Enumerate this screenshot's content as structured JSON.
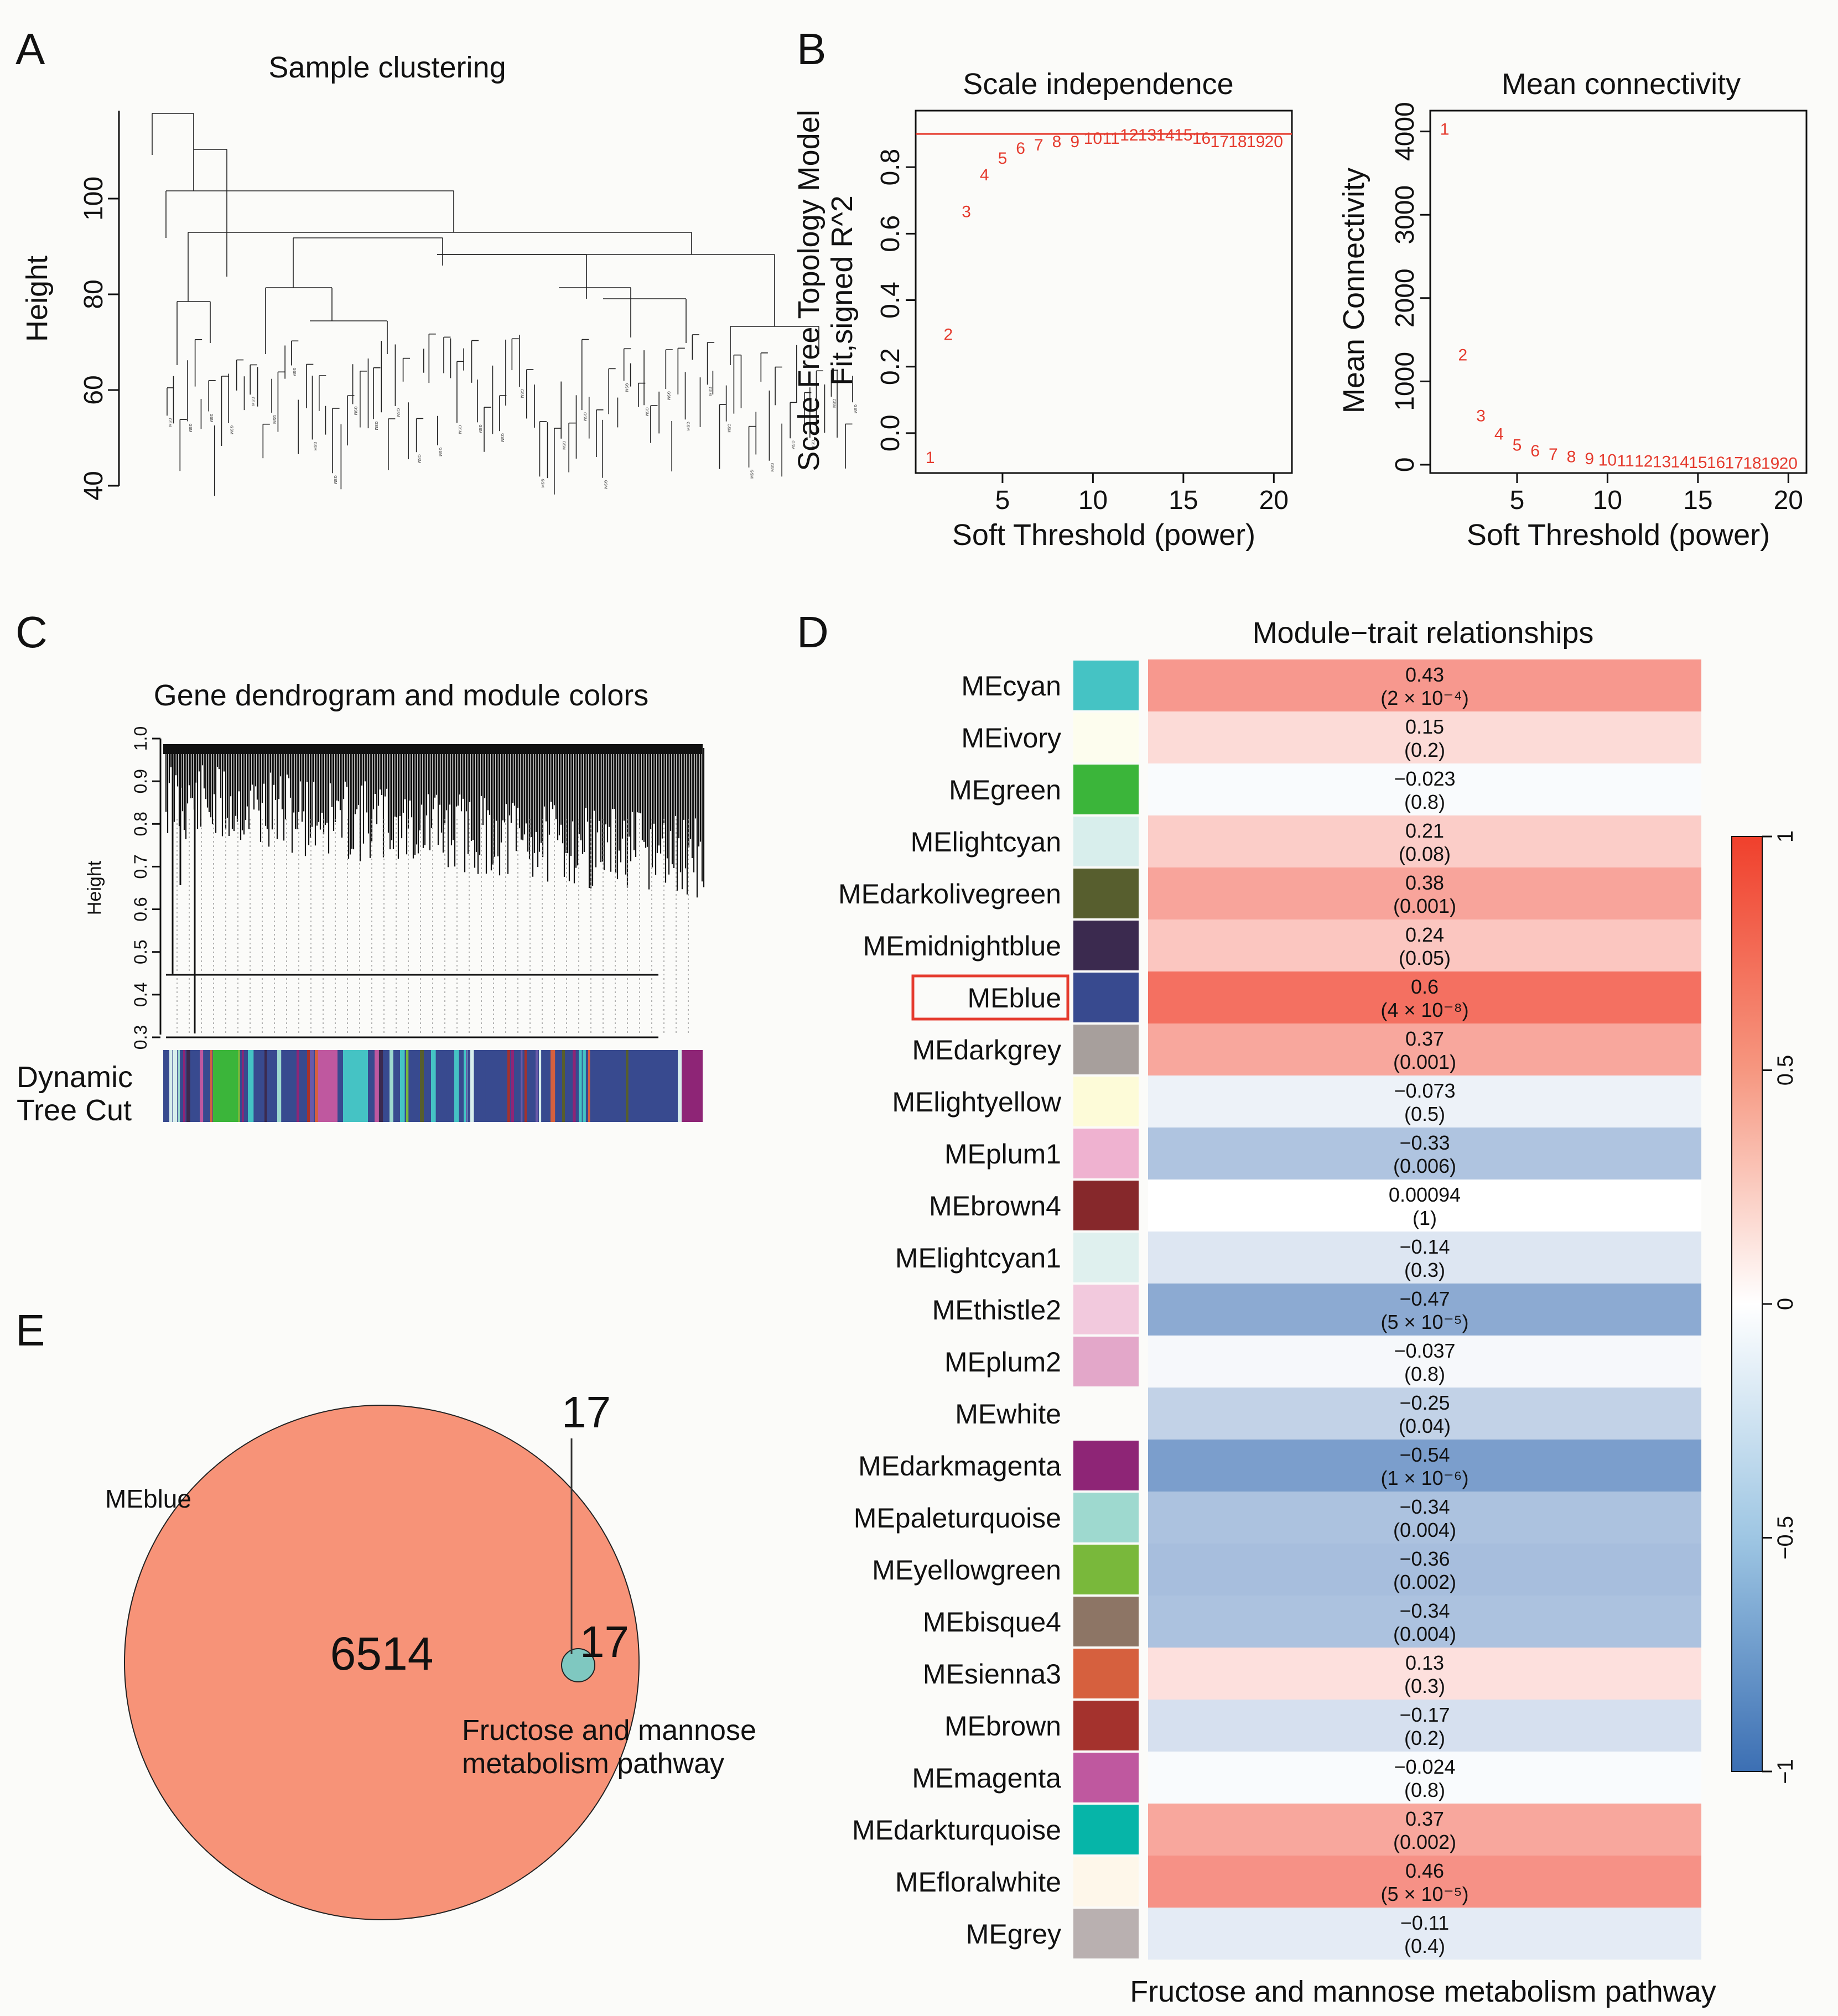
{
  "panels": {
    "A": {
      "letter": "A",
      "title": "Sample clustering",
      "ylabel": "Height",
      "yticks": [
        "40",
        "60",
        "80",
        "100"
      ]
    },
    "B": {
      "letter": "B",
      "left": {
        "title": "Scale independence",
        "ylabel1": "Scale Free Topology Model",
        "ylabel2": "Fit,signed R^2",
        "xlabel": "Soft Threshold (power)",
        "yticks": [
          "0.0",
          "0.2",
          "0.4",
          "0.6",
          "0.8"
        ],
        "xticks": [
          "5",
          "10",
          "15",
          "20"
        ]
      },
      "right": {
        "title": "Mean connectivity",
        "ylabel": "Mean Connectivity",
        "xlabel": "Soft Threshold (power)",
        "yticks": [
          "0",
          "1000",
          "2000",
          "3000",
          "4000"
        ],
        "xticks": [
          "5",
          "10",
          "15",
          "20"
        ]
      }
    },
    "C": {
      "letter": "C",
      "title": "Gene dendrogram and module colors",
      "ylabel": "Height",
      "yticks": [
        "0.3",
        "0.4",
        "0.5",
        "0.6",
        "0.7",
        "0.8",
        "0.9",
        "1.0"
      ],
      "colorbar_label_1": "Dynamic",
      "colorbar_label_2": "Tree Cut"
    },
    "D": {
      "letter": "D",
      "title": "Module−trait relationships",
      "xlabel": "Fructose and mannose metabolism pathway",
      "legend_ticks": [
        "1",
        "0.5",
        "0",
        "−0.5",
        "−1"
      ],
      "highlight": "MEblue"
    },
    "E": {
      "letter": "E",
      "set_a_label": "MEblue",
      "set_a_only": "6514",
      "overlap_count": "17",
      "set_b_total": "17",
      "set_b_label_1": "Fructose and mannose",
      "set_b_label_2": "metabolism pathway"
    }
  },
  "chart_data": [
    {
      "panel": "B-left",
      "type": "scatter",
      "title": "Scale independence",
      "xlabel": "Soft Threshold (power)",
      "ylabel": "Scale Free Topology Model Fit,signed R^2",
      "x": [
        1,
        2,
        3,
        4,
        5,
        6,
        7,
        8,
        9,
        10,
        11,
        12,
        13,
        14,
        15,
        16,
        17,
        18,
        19,
        20
      ],
      "y": [
        -0.07,
        0.3,
        0.67,
        0.78,
        0.83,
        0.86,
        0.87,
        0.88,
        0.88,
        0.89,
        0.89,
        0.9,
        0.9,
        0.9,
        0.9,
        0.89,
        0.88,
        0.88,
        0.88,
        0.88
      ],
      "xlim": [
        0.2,
        21
      ],
      "ylim": [
        -0.12,
        0.97
      ],
      "hline": 0.9
    },
    {
      "panel": "B-right",
      "type": "scatter",
      "title": "Mean connectivity",
      "xlabel": "Soft Threshold (power)",
      "ylabel": "Mean Connectivity",
      "x": [
        1,
        2,
        3,
        4,
        5,
        6,
        7,
        8,
        9,
        10,
        11,
        12,
        13,
        14,
        15,
        16,
        17,
        18,
        19,
        20
      ],
      "y": [
        4040,
        1330,
        600,
        380,
        250,
        180,
        140,
        110,
        85,
        70,
        60,
        55,
        50,
        45,
        40,
        38,
        35,
        33,
        31,
        30
      ],
      "xlim": [
        0.2,
        21
      ],
      "ylim": [
        -100,
        4250
      ]
    },
    {
      "panel": "D",
      "type": "heatmap",
      "title": "Module−trait relationships",
      "xlabel": "Fructose and mannose metabolism pathway",
      "color_range": [
        -1,
        1
      ],
      "rows": [
        {
          "module": "MEcyan",
          "color": "#45c3c4",
          "r": "0.43",
          "p": "(2 × 10⁻⁴)",
          "value": 0.43
        },
        {
          "module": "MEivory",
          "color": "#fdfdee",
          "r": "0.15",
          "p": "(0.2)",
          "value": 0.15
        },
        {
          "module": "MEgreen",
          "color": "#3bb53a",
          "r": "−0.023",
          "p": "(0.8)",
          "value": -0.023
        },
        {
          "module": "MElightcyan",
          "color": "#d8eeec",
          "r": "0.21",
          "p": "(0.08)",
          "value": 0.21
        },
        {
          "module": "MEdarkolivegreen",
          "color": "#575e2e",
          "r": "0.38",
          "p": "(0.001)",
          "value": 0.38
        },
        {
          "module": "MEmidnightblue",
          "color": "#3b2a4f",
          "r": "0.24",
          "p": "(0.05)",
          "value": 0.24
        },
        {
          "module": "MEblue",
          "color": "#384a8f",
          "r": "0.6",
          "p": "(4 × 10⁻⁸)",
          "value": 0.6
        },
        {
          "module": "MEdarkgrey",
          "color": "#a79f9c",
          "r": "0.37",
          "p": "(0.001)",
          "value": 0.37
        },
        {
          "module": "MElightyellow",
          "color": "#fdfbd8",
          "r": "−0.073",
          "p": "(0.5)",
          "value": -0.073
        },
        {
          "module": "MEplum1",
          "color": "#efb2d0",
          "r": "−0.33",
          "p": "(0.006)",
          "value": -0.33
        },
        {
          "module": "MEbrown4",
          "color": "#86282b",
          "r": "0.00094",
          "p": "(1)",
          "value": 0.00094
        },
        {
          "module": "MElightcyan1",
          "color": "#dff0ee",
          "r": "−0.14",
          "p": "(0.3)",
          "value": -0.14
        },
        {
          "module": "MEthistle2",
          "color": "#f2c9dd",
          "r": "−0.47",
          "p": "(5 × 10⁻⁵)",
          "value": -0.47
        },
        {
          "module": "MEplum2",
          "color": "#e3a7c9",
          "r": "−0.037",
          "p": "(0.8)",
          "value": -0.037
        },
        {
          "module": "MEwhite",
          "color": "#fbfbf9",
          "r": "−0.25",
          "p": "(0.04)",
          "value": -0.25
        },
        {
          "module": "MEdarkmagenta",
          "color": "#8e2576",
          "r": "−0.54",
          "p": "(1 × 10⁻⁶)",
          "value": -0.54
        },
        {
          "module": "MEpaleturquoise",
          "color": "#9ed9cf",
          "r": "−0.34",
          "p": "(0.004)",
          "value": -0.34
        },
        {
          "module": "MEyellowgreen",
          "color": "#79b83b",
          "r": "−0.36",
          "p": "(0.002)",
          "value": -0.36
        },
        {
          "module": "MEbisque4",
          "color": "#8d7565",
          "r": "−0.34",
          "p": "(0.004)",
          "value": -0.34
        },
        {
          "module": "MEsienna3",
          "color": "#d6603e",
          "r": "0.13",
          "p": "(0.3)",
          "value": 0.13
        },
        {
          "module": "MEbrown",
          "color": "#a4322d",
          "r": "−0.17",
          "p": "(0.2)",
          "value": -0.17
        },
        {
          "module": "MEmagenta",
          "color": "#bf589f",
          "r": "−0.024",
          "p": "(0.8)",
          "value": -0.024
        },
        {
          "module": "MEdarkturquoise",
          "color": "#06b5a8",
          "r": "0.37",
          "p": "(0.002)",
          "value": 0.37
        },
        {
          "module": "MEfloralwhite",
          "color": "#fef7ea",
          "r": "0.46",
          "p": "(5 × 10⁻⁵)",
          "value": 0.46
        },
        {
          "module": "MEgrey",
          "color": "#b9b0b0",
          "r": "−0.11",
          "p": "(0.4)",
          "value": -0.11
        }
      ]
    },
    {
      "panel": "E",
      "type": "venn",
      "sets": [
        {
          "name": "MEblue",
          "only": 6514
        },
        {
          "name": "Fructose and mannose metabolism pathway",
          "size": 17
        }
      ],
      "overlap": 17
    }
  ],
  "colors": {
    "curve": "#e53b2e",
    "highlight_box": "#e53b2e",
    "venn_a": "#f79378",
    "venn_b": "#7fc8c0",
    "heat_pos": "#f0402c",
    "heat_neg": "#3c6fb3"
  }
}
